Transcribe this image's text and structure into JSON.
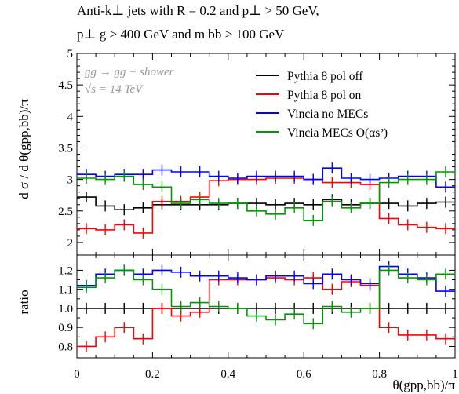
{
  "title": {
    "line1": "Anti-k⊥ jets with R = 0.2 and p⊥ > 50 GeV,",
    "line2": "p⊥ g > 400 GeV and m bb > 100 GeV"
  },
  "annotations": [
    "gg → gg + shower",
    "√s = 14 TeV"
  ],
  "chart_data": [
    {
      "type": "line",
      "panel": "main",
      "xlabel": "",
      "ylabel": "d σ / d θ(gpp,bb)/π",
      "xlim": [
        0,
        1
      ],
      "ylim": [
        1.8,
        5.0
      ],
      "yticks": [
        "2",
        "2.5",
        "3",
        "3.5",
        "4",
        "4.5",
        "5"
      ],
      "x_bin_edges": [
        0,
        0.05,
        0.1,
        0.15,
        0.2,
        0.25,
        0.3,
        0.35,
        0.4,
        0.45,
        0.5,
        0.55,
        0.6,
        0.65,
        0.7,
        0.75,
        0.8,
        0.85,
        0.9,
        0.95,
        1.0
      ],
      "legend_position": "top-right",
      "series": [
        {
          "name": "Pythia 8 pol off",
          "color": "#000000",
          "values": [
            2.72,
            2.58,
            2.52,
            2.55,
            2.6,
            2.6,
            2.6,
            2.6,
            2.62,
            2.62,
            2.6,
            2.62,
            2.6,
            2.68,
            2.6,
            2.62,
            2.62,
            2.58,
            2.62,
            2.64
          ]
        },
        {
          "name": "Pythia 8 pol on",
          "color": "#ff0000",
          "values": [
            2.22,
            2.2,
            2.28,
            2.15,
            2.65,
            2.65,
            2.72,
            2.98,
            3.0,
            3.0,
            3.02,
            3.02,
            3.0,
            2.95,
            2.95,
            2.92,
            2.38,
            2.28,
            2.24,
            2.22
          ]
        },
        {
          "name": "Vincia no MECs",
          "color": "#0000ff",
          "values": [
            3.08,
            3.05,
            3.08,
            3.08,
            3.15,
            3.12,
            3.12,
            3.05,
            3.02,
            3.05,
            3.05,
            3.05,
            3.0,
            3.18,
            3.02,
            3.0,
            3.02,
            3.05,
            3.05,
            2.88
          ]
        },
        {
          "name": "Vincia MECs O(αs²)",
          "color": "#009900",
          "values": [
            3.02,
            3.0,
            3.05,
            2.92,
            2.88,
            2.62,
            2.68,
            2.62,
            2.62,
            2.5,
            2.45,
            2.55,
            2.35,
            2.65,
            2.55,
            2.62,
            2.95,
            3.0,
            3.0,
            3.12
          ]
        }
      ]
    },
    {
      "type": "line",
      "panel": "ratio",
      "xlabel": "θ(gpp,bb)/π",
      "ylabel": "ratio",
      "xlim": [
        0,
        1
      ],
      "ylim": [
        0.74,
        1.28
      ],
      "yticks": [
        "0.8",
        "0.9",
        "1.0",
        "1.1",
        "1.2"
      ],
      "xticks": [
        "0",
        "0.2",
        "0.4",
        "0.6",
        "0.8",
        "1"
      ],
      "x_bin_edges": [
        0,
        0.05,
        0.1,
        0.15,
        0.2,
        0.25,
        0.3,
        0.35,
        0.4,
        0.45,
        0.5,
        0.55,
        0.6,
        0.65,
        0.7,
        0.75,
        0.8,
        0.85,
        0.9,
        0.95,
        1.0
      ],
      "series": [
        {
          "name": "Pythia 8 pol off",
          "color": "#000000",
          "values": [
            1.0,
            1.0,
            1.0,
            1.0,
            1.0,
            1.0,
            1.0,
            1.0,
            1.0,
            1.0,
            1.0,
            1.0,
            1.0,
            1.0,
            1.0,
            1.0,
            1.0,
            1.0,
            1.0,
            1.0
          ]
        },
        {
          "name": "Pythia 8 pol on",
          "color": "#ff0000",
          "values": [
            0.8,
            0.85,
            0.9,
            0.84,
            1.0,
            0.96,
            0.98,
            1.15,
            1.15,
            1.15,
            1.16,
            1.15,
            1.16,
            1.1,
            1.14,
            1.12,
            0.9,
            0.86,
            0.86,
            0.84
          ]
        },
        {
          "name": "Vincia no MECs",
          "color": "#0000ff",
          "values": [
            1.12,
            1.18,
            1.2,
            1.18,
            1.2,
            1.19,
            1.17,
            1.17,
            1.16,
            1.15,
            1.17,
            1.17,
            1.13,
            1.18,
            1.15,
            1.13,
            1.22,
            1.18,
            1.16,
            1.09
          ]
        },
        {
          "name": "Vincia MECs O(αs²)",
          "color": "#009900",
          "values": [
            1.11,
            1.16,
            1.2,
            1.15,
            1.1,
            1.01,
            1.03,
            1.01,
            1.0,
            0.96,
            0.94,
            0.97,
            0.92,
            1.01,
            0.98,
            1.0,
            1.2,
            1.16,
            1.15,
            1.18
          ]
        }
      ]
    }
  ]
}
